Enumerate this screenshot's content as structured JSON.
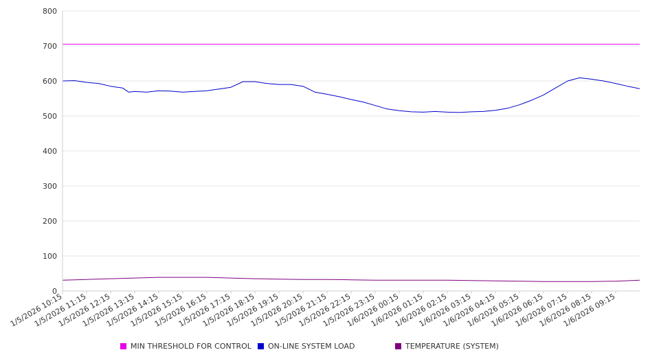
{
  "chart_data": {
    "type": "line",
    "ylim": [
      0,
      800
    ],
    "y_ticks": [
      "0",
      "100",
      "200",
      "300",
      "400",
      "500",
      "600",
      "700",
      "800"
    ],
    "x_ticks": [
      "1/5/2026 10:15",
      "1/5/2026 11:15",
      "1/5/2026 12:15",
      "1/5/2026 13:15",
      "1/5/2026 14:15",
      "1/5/2026 15:15",
      "1/5/2026 16:15",
      "1/5/2026 17:15",
      "1/5/2026 18:15",
      "1/5/2026 19:15",
      "1/5/2026 20:15",
      "1/5/2026 21:15",
      "1/5/2026 22:15",
      "1/5/2026 23:15",
      "1/6/2026 00:15",
      "1/6/2026 01:15",
      "1/6/2026 02:15",
      "1/6/2026 03:15",
      "1/6/2026 04:15",
      "1/6/2026 05:15",
      "1/6/2026 06:15",
      "1/6/2026 07:15",
      "1/6/2026 08:15",
      "1/6/2026 09:15"
    ],
    "x_end": "1/6/2026 10:15",
    "grid": "horizontal",
    "legend_position": "bottom",
    "series": [
      {
        "name": "MIN THRESHOLD FOR CONTROL",
        "color": "#e600e6",
        "points": [
          [
            "1/5/2026 10:15",
            705
          ],
          [
            "1/6/2026 10:15",
            705
          ]
        ]
      },
      {
        "name": "ON-LINE SYSTEM LOAD",
        "color": "#0000cc",
        "points": [
          [
            "1/5/2026 10:15",
            600
          ],
          [
            "1/5/2026 10:45",
            601
          ],
          [
            "1/5/2026 11:15",
            596
          ],
          [
            "1/5/2026 11:45",
            593
          ],
          [
            "1/5/2026 12:15",
            585
          ],
          [
            "1/5/2026 12:45",
            580
          ],
          [
            "1/5/2026 13:00",
            568
          ],
          [
            "1/5/2026 13:15",
            570
          ],
          [
            "1/5/2026 13:45",
            568
          ],
          [
            "1/5/2026 14:15",
            572
          ],
          [
            "1/5/2026 14:45",
            571
          ],
          [
            "1/5/2026 15:15",
            568
          ],
          [
            "1/5/2026 15:45",
            570
          ],
          [
            "1/5/2026 16:15",
            572
          ],
          [
            "1/5/2026 16:45",
            577
          ],
          [
            "1/5/2026 17:15",
            582
          ],
          [
            "1/5/2026 17:45",
            598
          ],
          [
            "1/5/2026 18:15",
            598
          ],
          [
            "1/5/2026 18:45",
            593
          ],
          [
            "1/5/2026 19:15",
            590
          ],
          [
            "1/5/2026 19:45",
            590
          ],
          [
            "1/5/2026 20:15",
            585
          ],
          [
            "1/5/2026 20:45",
            568
          ],
          [
            "1/5/2026 21:15",
            562
          ],
          [
            "1/5/2026 21:45",
            555
          ],
          [
            "1/5/2026 22:15",
            547
          ],
          [
            "1/5/2026 22:45",
            540
          ],
          [
            "1/5/2026 23:15",
            530
          ],
          [
            "1/5/2026 23:45",
            520
          ],
          [
            "1/6/2026 00:15",
            515
          ],
          [
            "1/6/2026 00:45",
            512
          ],
          [
            "1/6/2026 01:15",
            511
          ],
          [
            "1/6/2026 01:45",
            513
          ],
          [
            "1/6/2026 02:15",
            511
          ],
          [
            "1/6/2026 02:45",
            510
          ],
          [
            "1/6/2026 03:15",
            512
          ],
          [
            "1/6/2026 03:45",
            513
          ],
          [
            "1/6/2026 04:15",
            516
          ],
          [
            "1/6/2026 04:45",
            522
          ],
          [
            "1/6/2026 05:15",
            532
          ],
          [
            "1/6/2026 05:45",
            545
          ],
          [
            "1/6/2026 06:15",
            560
          ],
          [
            "1/6/2026 06:45",
            580
          ],
          [
            "1/6/2026 07:15",
            600
          ],
          [
            "1/6/2026 07:45",
            609
          ],
          [
            "1/6/2026 08:15",
            605
          ],
          [
            "1/6/2026 08:45",
            600
          ],
          [
            "1/6/2026 09:15",
            593
          ],
          [
            "1/6/2026 09:45",
            585
          ],
          [
            "1/6/2026 10:15",
            578
          ]
        ]
      },
      {
        "name": "TEMPERATURE (SYSTEM)",
        "color": "#800080",
        "points": [
          [
            "1/5/2026 10:15",
            31
          ],
          [
            "1/5/2026 11:15",
            33
          ],
          [
            "1/5/2026 12:15",
            35
          ],
          [
            "1/5/2026 13:15",
            37
          ],
          [
            "1/5/2026 14:15",
            39
          ],
          [
            "1/5/2026 15:15",
            39
          ],
          [
            "1/5/2026 16:15",
            39
          ],
          [
            "1/5/2026 17:15",
            37
          ],
          [
            "1/5/2026 18:15",
            35
          ],
          [
            "1/5/2026 19:15",
            34
          ],
          [
            "1/5/2026 20:15",
            33
          ],
          [
            "1/5/2026 21:15",
            33
          ],
          [
            "1/5/2026 22:15",
            32
          ],
          [
            "1/5/2026 23:15",
            31
          ],
          [
            "1/6/2026 00:15",
            31
          ],
          [
            "1/6/2026 01:15",
            31
          ],
          [
            "1/6/2026 02:15",
            31
          ],
          [
            "1/6/2026 03:15",
            30
          ],
          [
            "1/6/2026 04:15",
            29
          ],
          [
            "1/6/2026 05:15",
            28
          ],
          [
            "1/6/2026 06:15",
            27
          ],
          [
            "1/6/2026 07:15",
            27
          ],
          [
            "1/6/2026 08:15",
            27
          ],
          [
            "1/6/2026 09:15",
            28
          ],
          [
            "1/6/2026 10:15",
            31
          ]
        ]
      }
    ]
  },
  "legend": [
    {
      "label": "MIN THRESHOLD FOR CONTROL",
      "color": "#e600e6"
    },
    {
      "label": "ON-LINE SYSTEM LOAD",
      "color": "#0000cc"
    },
    {
      "label": "TEMPERATURE (SYSTEM)",
      "color": "#800080"
    }
  ]
}
